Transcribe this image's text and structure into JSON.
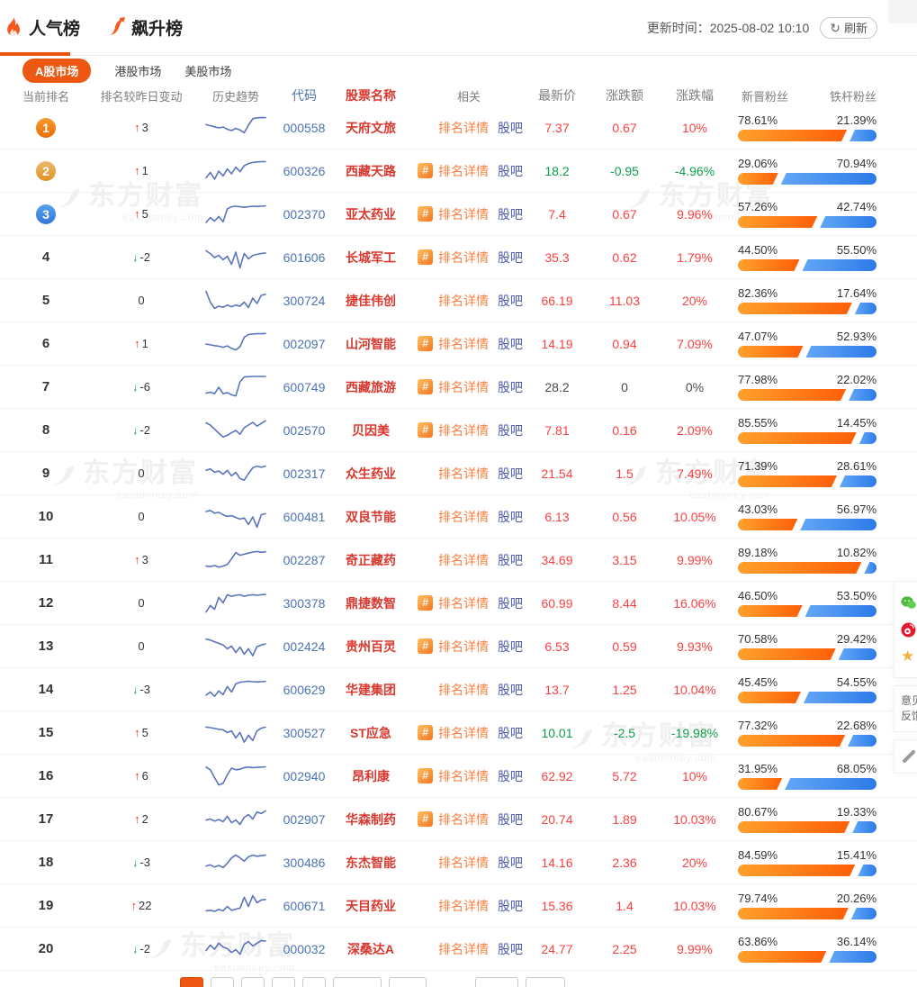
{
  "header": {
    "tabs": [
      {
        "label": "人气榜",
        "active": true
      },
      {
        "label": "飙升榜",
        "active": false
      }
    ],
    "update_label": "更新时间：",
    "update_time": "2025-08-02 10:10",
    "refresh_label": "刷新",
    "refresh_glyph": "↻"
  },
  "market_tabs": [
    {
      "label": "A股市场",
      "active": true
    },
    {
      "label": "港股市场",
      "active": false
    },
    {
      "label": "美股市场",
      "active": false
    }
  ],
  "glyphs": {
    "up": "↑",
    "down": "↓",
    "hash": "#",
    "star": "★"
  },
  "colors": {
    "accent_orange": "#ee5711",
    "link_orange": "#f98042",
    "link_blue": "#4a5cb4",
    "code_blue": "#4c74b0",
    "name_red": "#d9382e",
    "up_red": "#fb4040",
    "down_green": "#0c9f49",
    "fan_orange": "#fd6108",
    "fan_blue": "#2d7ae9",
    "spark_blue": "#5b74bd"
  },
  "watermark": {
    "text": "东方财富",
    "sub": "eastmoney.com"
  },
  "table": {
    "columns": [
      "当前排名",
      "排名较昨日变动",
      "历史趋势",
      "代码",
      "股票名称",
      "相关",
      "最新价",
      "涨跌额",
      "涨跌幅",
      "新晋粉丝",
      "铁杆粉丝"
    ],
    "links": {
      "detail": "排名详情",
      "guba": "股吧"
    },
    "rows": [
      {
        "rank": 1,
        "change": "3",
        "dir": "up",
        "code": "000558",
        "name": "天府文旅",
        "hash": false,
        "price": "7.37",
        "amount": "0.67",
        "percent": "10%",
        "trend": "up",
        "new_fans": "78.61%",
        "loyal_fans": "21.39%",
        "spark": [
          38,
          42,
          46,
          50,
          47,
          55,
          60,
          52,
          58,
          68,
          40,
          16,
          13,
          12,
          12
        ]
      },
      {
        "rank": 2,
        "change": "1",
        "dir": "up",
        "code": "600326",
        "name": "西藏天路",
        "hash": true,
        "price": "18.2",
        "amount": "-0.95",
        "percent": "-4.96%",
        "trend": "down",
        "new_fans": "29.06%",
        "loyal_fans": "70.94%",
        "spark": [
          75,
          55,
          80,
          50,
          68,
          42,
          60,
          35,
          52,
          30,
          22,
          18,
          16,
          15,
          15
        ]
      },
      {
        "rank": 3,
        "change": "5",
        "dir": "up",
        "code": "002370",
        "name": "亚太药业",
        "hash": true,
        "price": "7.4",
        "amount": "0.67",
        "percent": "9.96%",
        "trend": "up",
        "new_fans": "57.26%",
        "loyal_fans": "42.74%",
        "spark": [
          80,
          62,
          75,
          58,
          78,
          30,
          22,
          20,
          22,
          24,
          22,
          20,
          21,
          20,
          19
        ]
      },
      {
        "rank": 4,
        "change": "-2",
        "dir": "down",
        "code": "601606",
        "name": "长城军工",
        "hash": true,
        "price": "35.3",
        "amount": "0.62",
        "percent": "1.79%",
        "trend": "up",
        "new_fans": "44.50%",
        "loyal_fans": "55.50%",
        "spark": [
          25,
          35,
          50,
          42,
          58,
          45,
          75,
          30,
          88,
          35,
          55,
          42,
          38,
          35,
          33
        ]
      },
      {
        "rank": 5,
        "change": "0",
        "dir": "none",
        "code": "300724",
        "name": "捷佳伟创",
        "hash": false,
        "price": "66.19",
        "amount": "11.03",
        "percent": "20%",
        "trend": "up",
        "new_fans": "82.36%",
        "loyal_fans": "17.64%",
        "spark": [
          15,
          55,
          78,
          70,
          74,
          66,
          72,
          66,
          70,
          55,
          75,
          40,
          60,
          30,
          26
        ]
      },
      {
        "rank": 6,
        "change": "1",
        "dir": "up",
        "code": "002097",
        "name": "山河智能",
        "hash": true,
        "price": "14.19",
        "amount": "0.94",
        "percent": "7.09%",
        "trend": "up",
        "new_fans": "47.07%",
        "loyal_fans": "52.93%",
        "spark": [
          50,
          53,
          56,
          58,
          62,
          57,
          66,
          72,
          60,
          25,
          15,
          13,
          12,
          12,
          11
        ]
      },
      {
        "rank": 7,
        "change": "-6",
        "dir": "down",
        "code": "600749",
        "name": "西藏旅游",
        "hash": true,
        "price": "28.2",
        "amount": "0",
        "percent": "0%",
        "trend": "flat",
        "new_fans": "77.98%",
        "loyal_fans": "22.02%",
        "spark": [
          72,
          68,
          74,
          50,
          74,
          70,
          78,
          82,
          30,
          12,
          11,
          10,
          10,
          10,
          10
        ]
      },
      {
        "rank": 8,
        "change": "-2",
        "dir": "down",
        "code": "002570",
        "name": "贝因美",
        "hash": true,
        "price": "7.81",
        "amount": "0.16",
        "percent": "2.09%",
        "trend": "up",
        "new_fans": "85.55%",
        "loyal_fans": "14.45%",
        "spark": [
          22,
          30,
          45,
          60,
          74,
          68,
          58,
          50,
          64,
          40,
          30,
          20,
          34,
          24,
          14
        ]
      },
      {
        "rank": 9,
        "change": "0",
        "dir": "none",
        "code": "002317",
        "name": "众生药业",
        "hash": false,
        "price": "21.54",
        "amount": "1.5",
        "percent": "7.49%",
        "trend": "up",
        "new_fans": "71.39%",
        "loyal_fans": "28.61%",
        "spark": [
          38,
          32,
          45,
          40,
          52,
          38,
          58,
          45,
          68,
          74,
          50,
          28,
          22,
          26,
          22
        ]
      },
      {
        "rank": 10,
        "change": "0",
        "dir": "none",
        "code": "600481",
        "name": "双良节能",
        "hash": false,
        "price": "6.13",
        "amount": "0.56",
        "percent": "10.05%",
        "trend": "up",
        "new_fans": "43.03%",
        "loyal_fans": "56.97%",
        "spark": [
          30,
          26,
          36,
          33,
          42,
          48,
          45,
          52,
          58,
          54,
          78,
          50,
          88,
          42,
          38
        ]
      },
      {
        "rank": 11,
        "change": "3",
        "dir": "up",
        "code": "002287",
        "name": "奇正藏药",
        "hash": false,
        "price": "34.69",
        "amount": "3.15",
        "percent": "9.99%",
        "trend": "up",
        "new_fans": "89.18%",
        "loyal_fans": "10.82%",
        "spark": [
          72,
          74,
          70,
          76,
          72,
          66,
          45,
          22,
          32,
          28,
          24,
          20,
          18,
          21,
          19
        ]
      },
      {
        "rank": 12,
        "change": "0",
        "dir": "none",
        "code": "300378",
        "name": "鼎捷数智",
        "hash": true,
        "price": "60.99",
        "amount": "8.44",
        "percent": "16.06%",
        "trend": "up",
        "new_fans": "46.50%",
        "loyal_fans": "53.50%",
        "spark": [
          82,
          58,
          72,
          28,
          48,
          18,
          24,
          20,
          18,
          24,
          20,
          18,
          20,
          18,
          17
        ]
      },
      {
        "rank": 13,
        "change": "0",
        "dir": "none",
        "code": "002424",
        "name": "贵州百灵",
        "hash": true,
        "price": "6.53",
        "amount": "0.59",
        "percent": "9.93%",
        "trend": "up",
        "new_fans": "70.58%",
        "loyal_fans": "29.42%",
        "spark": [
          22,
          26,
          32,
          38,
          44,
          58,
          48,
          72,
          52,
          78,
          58,
          84,
          50,
          44,
          40
        ]
      },
      {
        "rank": 14,
        "change": "-3",
        "dir": "down",
        "code": "600629",
        "name": "华建集团",
        "hash": false,
        "price": "13.7",
        "amount": "1.25",
        "percent": "10.04%",
        "trend": "up",
        "new_fans": "45.45%",
        "loyal_fans": "54.55%",
        "spark": [
          70,
          58,
          74,
          54,
          68,
          38,
          58,
          28,
          22,
          20,
          18,
          20,
          21,
          20,
          19
        ]
      },
      {
        "rank": 15,
        "change": "5",
        "dir": "up",
        "code": "300527",
        "name": "ST应急",
        "hash": true,
        "price": "10.01",
        "amount": "-2.5",
        "percent": "-19.98%",
        "trend": "down",
        "new_fans": "77.32%",
        "loyal_fans": "22.68%",
        "spark": [
          28,
          30,
          33,
          36,
          38,
          48,
          42,
          68,
          48,
          84,
          58,
          78,
          42,
          32,
          28
        ]
      },
      {
        "rank": 16,
        "change": "6",
        "dir": "up",
        "code": "002940",
        "name": "昂利康",
        "hash": true,
        "price": "62.92",
        "amount": "5.72",
        "percent": "10%",
        "trend": "up",
        "new_fans": "31.95%",
        "loyal_fans": "68.05%",
        "spark": [
          16,
          26,
          55,
          82,
          76,
          45,
          20,
          26,
          24,
          18,
          16,
          18,
          17,
          16,
          15
        ]
      },
      {
        "rank": 17,
        "change": "2",
        "dir": "up",
        "code": "002907",
        "name": "华森制药",
        "hash": true,
        "price": "20.74",
        "amount": "1.89",
        "percent": "10.03%",
        "trend": "up",
        "new_fans": "80.67%",
        "loyal_fans": "19.33%",
        "spark": [
          52,
          48,
          56,
          50,
          58,
          38,
          62,
          52,
          68,
          42,
          32,
          48,
          22,
          28,
          18
        ]
      },
      {
        "rank": 18,
        "change": "-3",
        "dir": "down",
        "code": "300486",
        "name": "东杰智能",
        "hash": false,
        "price": "14.16",
        "amount": "2.36",
        "percent": "20%",
        "trend": "up",
        "new_fans": "84.59%",
        "loyal_fans": "15.41%",
        "spark": [
          62,
          58,
          66,
          60,
          68,
          52,
          32,
          22,
          32,
          44,
          28,
          22,
          26,
          24,
          22
        ]
      },
      {
        "rank": 19,
        "change": "22",
        "dir": "up",
        "code": "600671",
        "name": "天目药业",
        "hash": false,
        "price": "15.36",
        "amount": "1.4",
        "percent": "10.03%",
        "trend": "up",
        "new_fans": "79.74%",
        "loyal_fans": "20.26%",
        "spark": [
          68,
          66,
          70,
          63,
          68,
          52,
          66,
          62,
          58,
          18,
          52,
          12,
          38,
          28,
          26
        ]
      },
      {
        "rank": 20,
        "change": "-2",
        "dir": "down",
        "code": "000032",
        "name": "深桑达A",
        "hash": false,
        "price": "24.77",
        "amount": "2.25",
        "percent": "9.99%",
        "trend": "up",
        "new_fans": "63.86%",
        "loyal_fans": "36.14%",
        "spark": [
          55,
          35,
          50,
          28,
          42,
          48,
          62,
          52,
          68,
          32,
          22,
          38,
          28,
          18,
          20
        ]
      }
    ]
  },
  "side_widget": {
    "feedback_line1": "意见",
    "feedback_line2": "反馈"
  }
}
